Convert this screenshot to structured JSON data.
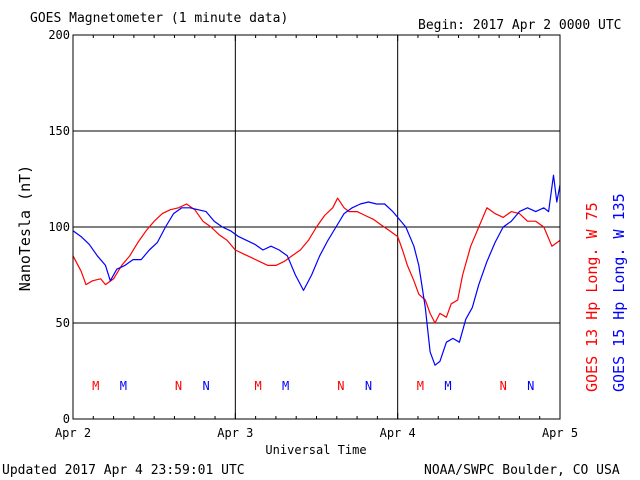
{
  "chart_data": {
    "type": "line",
    "title": "GOES Magnetometer (1 minute data)",
    "begin_label": "Begin:  2017 Apr 2 0000 UTC",
    "ylabel": "NanoTesla (nT)",
    "xlabel": "Universal Time",
    "ylim": [
      0,
      200
    ],
    "yticks": [
      0,
      50,
      100,
      150,
      200
    ],
    "xlim": [
      0,
      3
    ],
    "xtick_labels": [
      "Apr 2",
      "Apr 3",
      "Apr 4",
      "Apr 5"
    ],
    "grid": true,
    "footer_left": "Updated 2017 Apr  4 23:59:01 UTC",
    "footer_right": "NOAA/SWPC Boulder, CO USA",
    "series": [
      {
        "name": "GOES 13 Hp  Long. W 75",
        "color": "#ff0000",
        "points": [
          [
            0,
            85
          ],
          [
            0.05,
            77
          ],
          [
            0.08,
            70
          ],
          [
            0.12,
            72
          ],
          [
            0.17,
            73
          ],
          [
            0.2,
            70
          ],
          [
            0.25,
            73
          ],
          [
            0.3,
            80
          ],
          [
            0.35,
            85
          ],
          [
            0.4,
            92
          ],
          [
            0.45,
            98
          ],
          [
            0.5,
            103
          ],
          [
            0.55,
            107
          ],
          [
            0.6,
            109
          ],
          [
            0.65,
            110
          ],
          [
            0.7,
            112
          ],
          [
            0.75,
            109
          ],
          [
            0.8,
            103
          ],
          [
            0.85,
            100
          ],
          [
            0.9,
            96
          ],
          [
            0.95,
            93
          ],
          [
            1.0,
            88
          ],
          [
            1.05,
            86
          ],
          [
            1.1,
            84
          ],
          [
            1.15,
            82
          ],
          [
            1.2,
            80
          ],
          [
            1.25,
            80
          ],
          [
            1.3,
            82
          ],
          [
            1.35,
            85
          ],
          [
            1.4,
            88
          ],
          [
            1.45,
            93
          ],
          [
            1.5,
            100
          ],
          [
            1.55,
            106
          ],
          [
            1.6,
            110
          ],
          [
            1.63,
            115
          ],
          [
            1.67,
            110
          ],
          [
            1.7,
            108
          ],
          [
            1.75,
            108
          ],
          [
            1.8,
            106
          ],
          [
            1.85,
            104
          ],
          [
            1.9,
            101
          ],
          [
            1.95,
            98
          ],
          [
            2.0,
            95
          ],
          [
            2.03,
            88
          ],
          [
            2.06,
            80
          ],
          [
            2.1,
            72
          ],
          [
            2.13,
            65
          ],
          [
            2.17,
            62
          ],
          [
            2.2,
            55
          ],
          [
            2.23,
            50
          ],
          [
            2.26,
            55
          ],
          [
            2.3,
            53
          ],
          [
            2.33,
            60
          ],
          [
            2.37,
            62
          ],
          [
            2.4,
            75
          ],
          [
            2.45,
            90
          ],
          [
            2.5,
            100
          ],
          [
            2.55,
            110
          ],
          [
            2.6,
            107
          ],
          [
            2.65,
            105
          ],
          [
            2.7,
            108
          ],
          [
            2.75,
            107
          ],
          [
            2.8,
            103
          ],
          [
            2.85,
            103
          ],
          [
            2.9,
            100
          ],
          [
            2.95,
            90
          ],
          [
            3.0,
            93
          ]
        ]
      },
      {
        "name": "GOES 15 Hp  Long. W 135",
        "color": "#0000ff",
        "points": [
          [
            0,
            98
          ],
          [
            0.05,
            95
          ],
          [
            0.1,
            91
          ],
          [
            0.15,
            85
          ],
          [
            0.2,
            80
          ],
          [
            0.23,
            72
          ],
          [
            0.27,
            78
          ],
          [
            0.32,
            80
          ],
          [
            0.37,
            83
          ],
          [
            0.42,
            83
          ],
          [
            0.47,
            88
          ],
          [
            0.52,
            92
          ],
          [
            0.57,
            100
          ],
          [
            0.62,
            107
          ],
          [
            0.67,
            110
          ],
          [
            0.72,
            110
          ],
          [
            0.77,
            109
          ],
          [
            0.82,
            108
          ],
          [
            0.87,
            103
          ],
          [
            0.92,
            100
          ],
          [
            0.97,
            98
          ],
          [
            1.02,
            95
          ],
          [
            1.07,
            93
          ],
          [
            1.12,
            91
          ],
          [
            1.17,
            88
          ],
          [
            1.22,
            90
          ],
          [
            1.27,
            88
          ],
          [
            1.32,
            85
          ],
          [
            1.37,
            75
          ],
          [
            1.42,
            67
          ],
          [
            1.47,
            75
          ],
          [
            1.52,
            85
          ],
          [
            1.57,
            93
          ],
          [
            1.62,
            100
          ],
          [
            1.67,
            107
          ],
          [
            1.72,
            110
          ],
          [
            1.77,
            112
          ],
          [
            1.82,
            113
          ],
          [
            1.87,
            112
          ],
          [
            1.92,
            112
          ],
          [
            1.97,
            108
          ],
          [
            2.0,
            105
          ],
          [
            2.05,
            100
          ],
          [
            2.1,
            90
          ],
          [
            2.13,
            80
          ],
          [
            2.17,
            58
          ],
          [
            2.2,
            35
          ],
          [
            2.23,
            28
          ],
          [
            2.26,
            30
          ],
          [
            2.3,
            40
          ],
          [
            2.34,
            42
          ],
          [
            2.38,
            40
          ],
          [
            2.42,
            52
          ],
          [
            2.46,
            58
          ],
          [
            2.5,
            70
          ],
          [
            2.55,
            82
          ],
          [
            2.6,
            92
          ],
          [
            2.65,
            100
          ],
          [
            2.7,
            103
          ],
          [
            2.75,
            108
          ],
          [
            2.8,
            110
          ],
          [
            2.85,
            108
          ],
          [
            2.9,
            110
          ],
          [
            2.93,
            108
          ],
          [
            2.96,
            127
          ],
          [
            2.98,
            113
          ],
          [
            3.0,
            122
          ]
        ]
      }
    ],
    "markers": [
      {
        "label": "M",
        "color": "#ff0000",
        "x": 0.14
      },
      {
        "label": "M",
        "color": "#0000ff",
        "x": 0.31
      },
      {
        "label": "N",
        "color": "#ff0000",
        "x": 0.65
      },
      {
        "label": "N",
        "color": "#0000ff",
        "x": 0.82
      },
      {
        "label": "M",
        "color": "#ff0000",
        "x": 1.14
      },
      {
        "label": "M",
        "color": "#0000ff",
        "x": 1.31
      },
      {
        "label": "N",
        "color": "#ff0000",
        "x": 1.65
      },
      {
        "label": "N",
        "color": "#0000ff",
        "x": 1.82
      },
      {
        "label": "M",
        "color": "#ff0000",
        "x": 2.14
      },
      {
        "label": "M",
        "color": "#0000ff",
        "x": 2.31
      },
      {
        "label": "N",
        "color": "#ff0000",
        "x": 2.65
      },
      {
        "label": "N",
        "color": "#0000ff",
        "x": 2.82
      }
    ]
  }
}
